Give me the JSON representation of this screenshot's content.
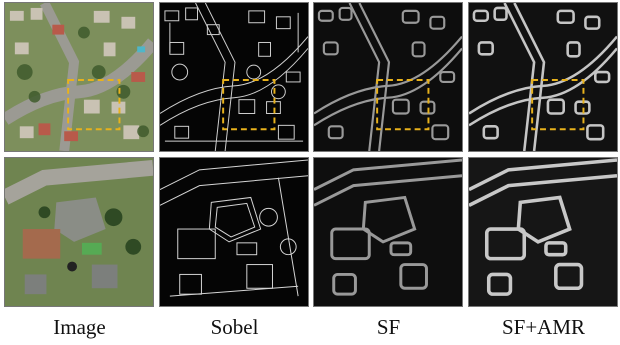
{
  "figure": {
    "columns": [
      {
        "label": "Image"
      },
      {
        "label": "Sobel"
      },
      {
        "label": "SF"
      },
      {
        "label": "SF+AMR"
      }
    ],
    "rows": 2,
    "highlight_color": "#e8b21c",
    "highlight_style": "dashed"
  }
}
